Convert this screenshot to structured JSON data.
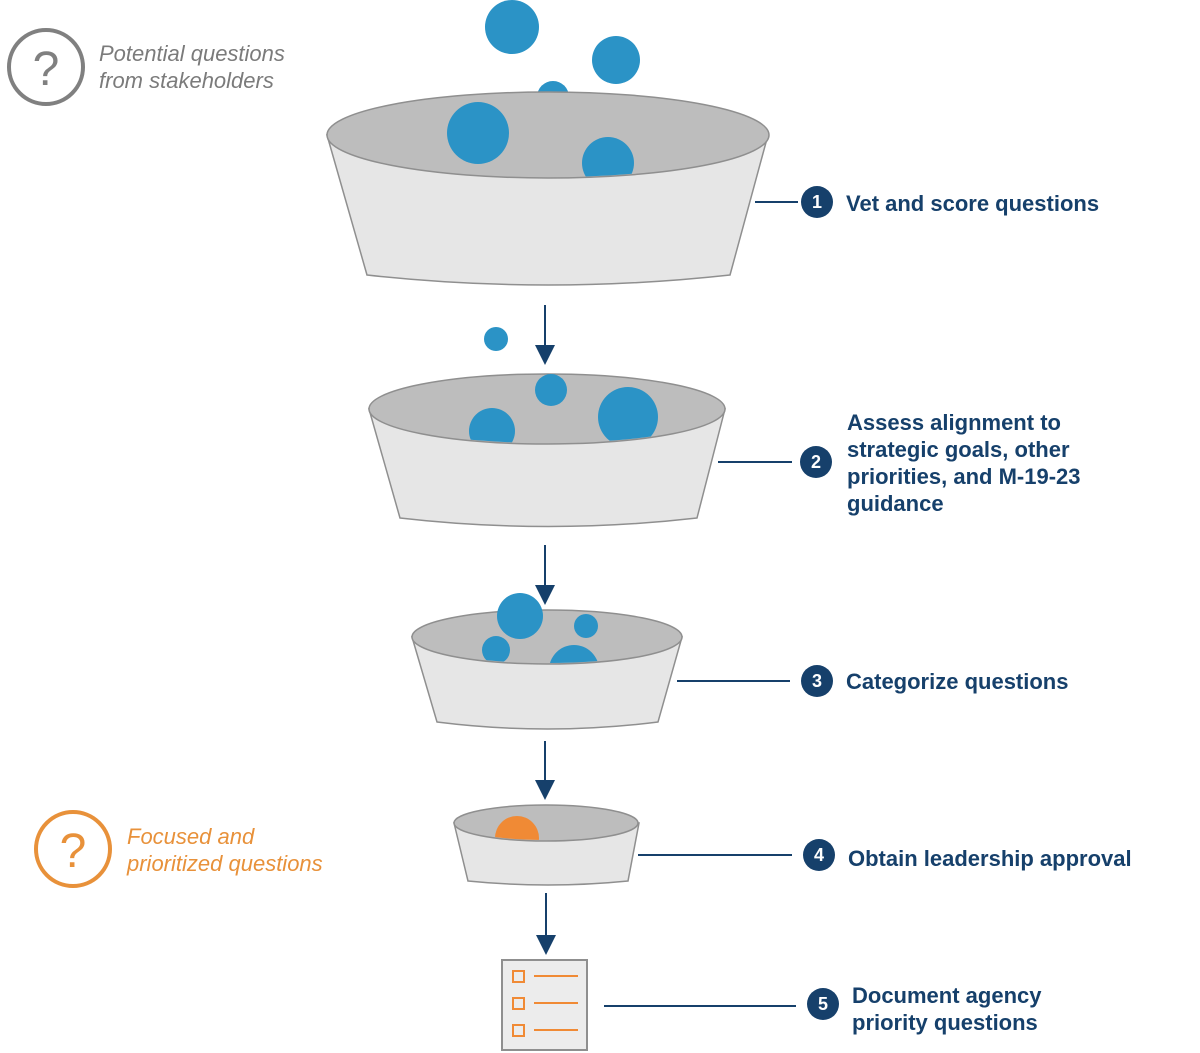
{
  "legend": {
    "top": {
      "icon": "question-circle-icon",
      "color": "#808080",
      "line1": "Potential questions",
      "line2": "from stakeholders"
    },
    "bottom": {
      "icon": "question-circle-icon",
      "color": "#e8913a",
      "line1": "Focused and",
      "line2": "prioritized questions"
    }
  },
  "steps": [
    {
      "number": "1",
      "lines": [
        "Vet and score questions"
      ]
    },
    {
      "number": "2",
      "lines": [
        "Assess alignment to",
        "strategic goals, other",
        "priorities, and M-19-23",
        "guidance"
      ]
    },
    {
      "number": "3",
      "lines": [
        "Categorize questions"
      ]
    },
    {
      "number": "4",
      "lines": [
        "Obtain leadership approval"
      ]
    },
    {
      "number": "5",
      "lines": [
        "Document agency",
        "priority questions"
      ]
    }
  ],
  "colors": {
    "question_dot": "#2b93c6",
    "approved_dot": "#f08a35",
    "step_text": "#16406b",
    "funnel_fill": "#e6e6e6",
    "funnel_inner": "#bdbdbd"
  }
}
